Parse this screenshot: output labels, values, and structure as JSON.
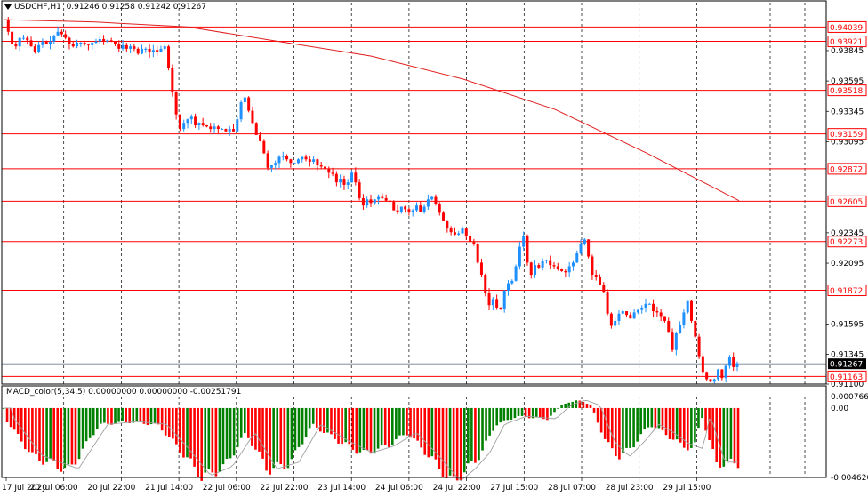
{
  "header": {
    "symbol": "USDCHF,H1",
    "ohlc": "0.91246 0.91258 0.91242 0.91267"
  },
  "indicator": {
    "name": "MACD_color(5,34,5)",
    "values": "0.00000000 0.00000000 -0.00251791"
  },
  "colors": {
    "bull": "#1e90ff",
    "bear": "#ff0000",
    "hline": "#ff0000",
    "ma": "#e02020",
    "macd_pos": "#008000",
    "macd_neg": "#ff0000",
    "signal": "#a0a0a0",
    "grid": "#000000",
    "current_bg": "#000000"
  },
  "chart_data": [
    {
      "type": "candlestick",
      "title": "USDCHF,H1",
      "ylim": [
        0.911,
        0.9413
      ],
      "price_ticks": [
        "0.93845",
        "0.93595",
        "0.93345",
        "0.93095",
        "0.92345",
        "0.92095",
        "0.91595",
        "0.91345",
        "0.91100"
      ],
      "x_ticks": [
        "17 Jul 2020",
        "20 Jul 06:00",
        "20 Jul 22:00",
        "21 Jul 14:00",
        "22 Jul 06:00",
        "22 Jul 22:00",
        "23 Jul 14:00",
        "24 Jul 06:00",
        "24 Jul 22:00",
        "27 Jul 15:00",
        "28 Jul 07:00",
        "28 Jul 23:00",
        "29 Jul 15:00"
      ],
      "horizontal_levels": [
        {
          "label": "0.94039",
          "value": 0.94039
        },
        {
          "label": "0.93921",
          "value": 0.93921
        },
        {
          "label": "0.93518",
          "value": 0.93518
        },
        {
          "label": "0.93159",
          "value": 0.93159
        },
        {
          "label": "0.92872",
          "value": 0.92872
        },
        {
          "label": "0.92605",
          "value": 0.92605
        },
        {
          "label": "0.92273",
          "value": 0.92273
        },
        {
          "label": "0.91872",
          "value": 0.91872
        },
        {
          "label": "0.91163",
          "value": 0.91163
        }
      ],
      "current_price": {
        "label": "0.91267",
        "value": 0.91267
      },
      "series": [
        {
          "name": "price_path",
          "points": [
            0.941,
            0.94,
            0.939,
            0.9388,
            0.9395,
            0.9395,
            0.9393,
            0.9388,
            0.9383,
            0.9389,
            0.9392,
            0.939,
            0.9392,
            0.9397,
            0.94,
            0.9398,
            0.9395,
            0.939,
            0.9388,
            0.9391,
            0.9391,
            0.939,
            0.9389,
            0.9391,
            0.9392,
            0.9394,
            0.9392,
            0.9393,
            0.9392,
            0.939,
            0.9386,
            0.9389,
            0.9386,
            0.9388,
            0.9386,
            0.9382,
            0.9386,
            0.9386,
            0.9383,
            0.9385,
            0.9383,
            0.9386,
            0.9388,
            0.937,
            0.935,
            0.9332,
            0.932,
            0.9325,
            0.9328,
            0.933,
            0.9323,
            0.9325,
            0.9323,
            0.9322,
            0.932,
            0.9322,
            0.932,
            0.932,
            0.9318,
            0.932,
            0.9318,
            0.9328,
            0.9342,
            0.9346,
            0.9335,
            0.9325,
            0.9315,
            0.931,
            0.93,
            0.9288,
            0.929,
            0.9292,
            0.9297,
            0.9298,
            0.9295,
            0.9292,
            0.9292,
            0.9295,
            0.9297,
            0.9295,
            0.9293,
            0.9295,
            0.929,
            0.9289,
            0.9287,
            0.9284,
            0.9283,
            0.9276,
            0.9279,
            0.9274,
            0.9276,
            0.9284,
            0.9276,
            0.9263,
            0.9257,
            0.9262,
            0.9259,
            0.9262,
            0.9264,
            0.9263,
            0.9261,
            0.926,
            0.9253,
            0.9252,
            0.9256,
            0.9254,
            0.9252,
            0.9253,
            0.9257,
            0.9252,
            0.9256,
            0.9262,
            0.9264,
            0.9258,
            0.9251,
            0.9244,
            0.9238,
            0.9235,
            0.9233,
            0.9234,
            0.9238,
            0.9232,
            0.9227,
            0.9225,
            0.921,
            0.92,
            0.9185,
            0.9175,
            0.918,
            0.9173,
            0.9172,
            0.9187,
            0.9193,
            0.9195,
            0.9207,
            0.9223,
            0.9232,
            0.921,
            0.92,
            0.9208,
            0.9206,
            0.9211,
            0.9212,
            0.9208,
            0.9207,
            0.9205,
            0.9203,
            0.9202,
            0.9207,
            0.921,
            0.9218,
            0.9225,
            0.9229,
            0.9215,
            0.92,
            0.9198,
            0.9192,
            0.9186,
            0.9168,
            0.9158,
            0.9162,
            0.9168,
            0.917,
            0.9167,
            0.9164,
            0.9169,
            0.9171,
            0.9173,
            0.9176,
            0.9176,
            0.917,
            0.9169,
            0.9166,
            0.9162,
            0.9153,
            0.9138,
            0.9152,
            0.9159,
            0.9169,
            0.9179,
            0.9162,
            0.9149,
            0.9133,
            0.912,
            0.9114,
            0.9112,
            0.9114,
            0.9122,
            0.9115,
            0.9125,
            0.9132,
            0.9124,
            0.9127
          ]
        },
        {
          "name": "moving_average",
          "points": [
            0.941,
            0.9408,
            0.9404,
            0.9392,
            0.938,
            0.9361,
            0.9336,
            0.93,
            0.9261
          ]
        }
      ]
    },
    {
      "type": "bar",
      "title": "MACD_color(5,34,5)",
      "ylim": [
        -0.00462,
        0.000766
      ],
      "y_ticks": [
        "0.0007660",
        "0.00",
        "-0.004620"
      ],
      "histogram_profile": [
        [
          0.0,
          0.0
        ],
        [
          0.0,
          -0.0006
        ],
        [
          0.04,
          -0.0035
        ],
        [
          0.09,
          -0.0045
        ],
        [
          0.13,
          -0.0012
        ],
        [
          0.17,
          -0.001
        ],
        [
          0.21,
          -0.0012
        ],
        [
          0.24,
          -0.003
        ],
        [
          0.27,
          -0.005
        ],
        [
          0.3,
          -0.0043
        ],
        [
          0.33,
          -0.0018
        ],
        [
          0.36,
          -0.0045
        ],
        [
          0.39,
          -0.004
        ],
        [
          0.42,
          -0.0012
        ],
        [
          0.46,
          -0.0025
        ],
        [
          0.49,
          -0.0033
        ],
        [
          0.52,
          -0.0028
        ],
        [
          0.55,
          -0.0018
        ],
        [
          0.58,
          -0.0035
        ],
        [
          0.61,
          -0.0054
        ],
        [
          0.63,
          -0.0045
        ],
        [
          0.65,
          -0.0033
        ],
        [
          0.67,
          -0.0012
        ],
        [
          0.7,
          -0.0006
        ],
        [
          0.74,
          -0.0008
        ],
        [
          0.76,
          0.0002
        ],
        [
          0.78,
          0.0006
        ],
        [
          0.8,
          0.0002
        ],
        [
          0.82,
          -0.0025
        ],
        [
          0.84,
          -0.0036
        ],
        [
          0.86,
          -0.0025
        ],
        [
          0.88,
          -0.0012
        ],
        [
          0.9,
          -0.0018
        ],
        [
          0.92,
          -0.0026
        ],
        [
          0.94,
          -0.003
        ],
        [
          0.95,
          -0.0005
        ],
        [
          0.97,
          -0.004
        ],
        [
          1.0,
          -0.004
        ]
      ]
    }
  ]
}
